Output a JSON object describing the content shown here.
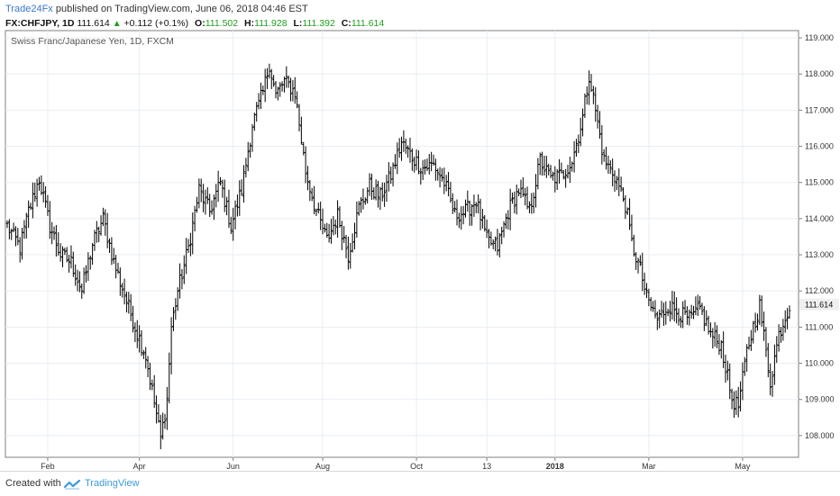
{
  "header": {
    "author": "Trade24Fx",
    "published_text": " published on TradingView.com, June 06, 2018 04:46 EST",
    "symbol": "FX:CHFJPY, 1D",
    "last": "111.614",
    "change": "+0.112 (+0.1%)",
    "open_label": "O:",
    "open": "111.502",
    "high_label": "H:",
    "high": "111.928",
    "low_label": "L:",
    "low": "111.392",
    "close_label": "C:",
    "close": "111.614"
  },
  "footer": {
    "created_with": "Created with",
    "brand": "TradingView"
  },
  "colors": {
    "bar": "#000000",
    "grid": "#e8eef3",
    "axis": "#7f7f7f",
    "author": "#3a78c9",
    "up": "#1e9e1e",
    "price_label_bg": "#efefef"
  },
  "chart_data": {
    "type": "ohlc",
    "title": "Swiss Franc/Japanese Yen, 1D, FXCM",
    "ylim": [
      107.4,
      119.2
    ],
    "y_ticks": [
      "108.000",
      "109.000",
      "110.000",
      "111.000",
      "112.000",
      "113.000",
      "114.000",
      "115.000",
      "116.000",
      "117.000",
      "118.000",
      "119.000"
    ],
    "x_ticks": [
      {
        "label": "Feb",
        "index": 19
      },
      {
        "label": "Apr",
        "index": 62
      },
      {
        "label": "Jun",
        "index": 106
      },
      {
        "label": "Aug",
        "index": 148
      },
      {
        "label": "Oct",
        "index": 192
      },
      {
        "label": "13",
        "index": 225
      },
      {
        "label": "2018",
        "index": 257
      },
      {
        "label": "Mar",
        "index": 301
      },
      {
        "label": "May",
        "index": 345
      }
    ],
    "x_bold": [
      "2018"
    ],
    "last_price_label": "111.614",
    "close_keys": [
      [
        0,
        113.8
      ],
      [
        6,
        113.2
      ],
      [
        10,
        114.2
      ],
      [
        15,
        115.1
      ],
      [
        20,
        113.8
      ],
      [
        25,
        113.0
      ],
      [
        30,
        112.8
      ],
      [
        35,
        112.0
      ],
      [
        40,
        113.3
      ],
      [
        45,
        114.0
      ],
      [
        50,
        112.8
      ],
      [
        55,
        111.9
      ],
      [
        60,
        111.0
      ],
      [
        65,
        110.2
      ],
      [
        70,
        108.6
      ],
      [
        72,
        107.9
      ],
      [
        75,
        109.0
      ],
      [
        77,
        111.0
      ],
      [
        80,
        112.0
      ],
      [
        85,
        113.2
      ],
      [
        90,
        114.8
      ],
      [
        95,
        114.2
      ],
      [
        100,
        115.0
      ],
      [
        105,
        113.8
      ],
      [
        110,
        114.8
      ],
      [
        115,
        116.6
      ],
      [
        120,
        117.5
      ],
      [
        123,
        118.3
      ],
      [
        126,
        117.4
      ],
      [
        130,
        117.8
      ],
      [
        135,
        117.5
      ],
      [
        140,
        115.3
      ],
      [
        145,
        114.2
      ],
      [
        150,
        113.4
      ],
      [
        155,
        114.1
      ],
      [
        160,
        113.0
      ],
      [
        165,
        114.3
      ],
      [
        170,
        114.9
      ],
      [
        175,
        114.6
      ],
      [
        180,
        115.2
      ],
      [
        185,
        116.1
      ],
      [
        190,
        115.7
      ],
      [
        195,
        115.4
      ],
      [
        200,
        115.5
      ],
      [
        205,
        115.0
      ],
      [
        210,
        114.1
      ],
      [
        215,
        114.2
      ],
      [
        220,
        114.5
      ],
      [
        225,
        113.4
      ],
      [
        230,
        113.2
      ],
      [
        235,
        114.2
      ],
      [
        240,
        114.8
      ],
      [
        245,
        114.2
      ],
      [
        250,
        115.6
      ],
      [
        255,
        115.1
      ],
      [
        260,
        115.2
      ],
      [
        265,
        115.6
      ],
      [
        270,
        116.8
      ],
      [
        273,
        118.0
      ],
      [
        276,
        117.0
      ],
      [
        280,
        115.6
      ],
      [
        285,
        115.2
      ],
      [
        290,
        114.4
      ],
      [
        293,
        113.3
      ],
      [
        297,
        112.6
      ],
      [
        300,
        111.8
      ],
      [
        305,
        111.2
      ],
      [
        310,
        111.6
      ],
      [
        315,
        111.4
      ],
      [
        320,
        111.2
      ],
      [
        325,
        111.5
      ],
      [
        330,
        110.8
      ],
      [
        335,
        110.5
      ],
      [
        340,
        109.0
      ],
      [
        343,
        108.8
      ],
      [
        347,
        110.3
      ],
      [
        350,
        111.0
      ],
      [
        353,
        111.6
      ],
      [
        356,
        110.3
      ],
      [
        358,
        109.5
      ],
      [
        362,
        110.8
      ],
      [
        367,
        111.6
      ]
    ]
  }
}
